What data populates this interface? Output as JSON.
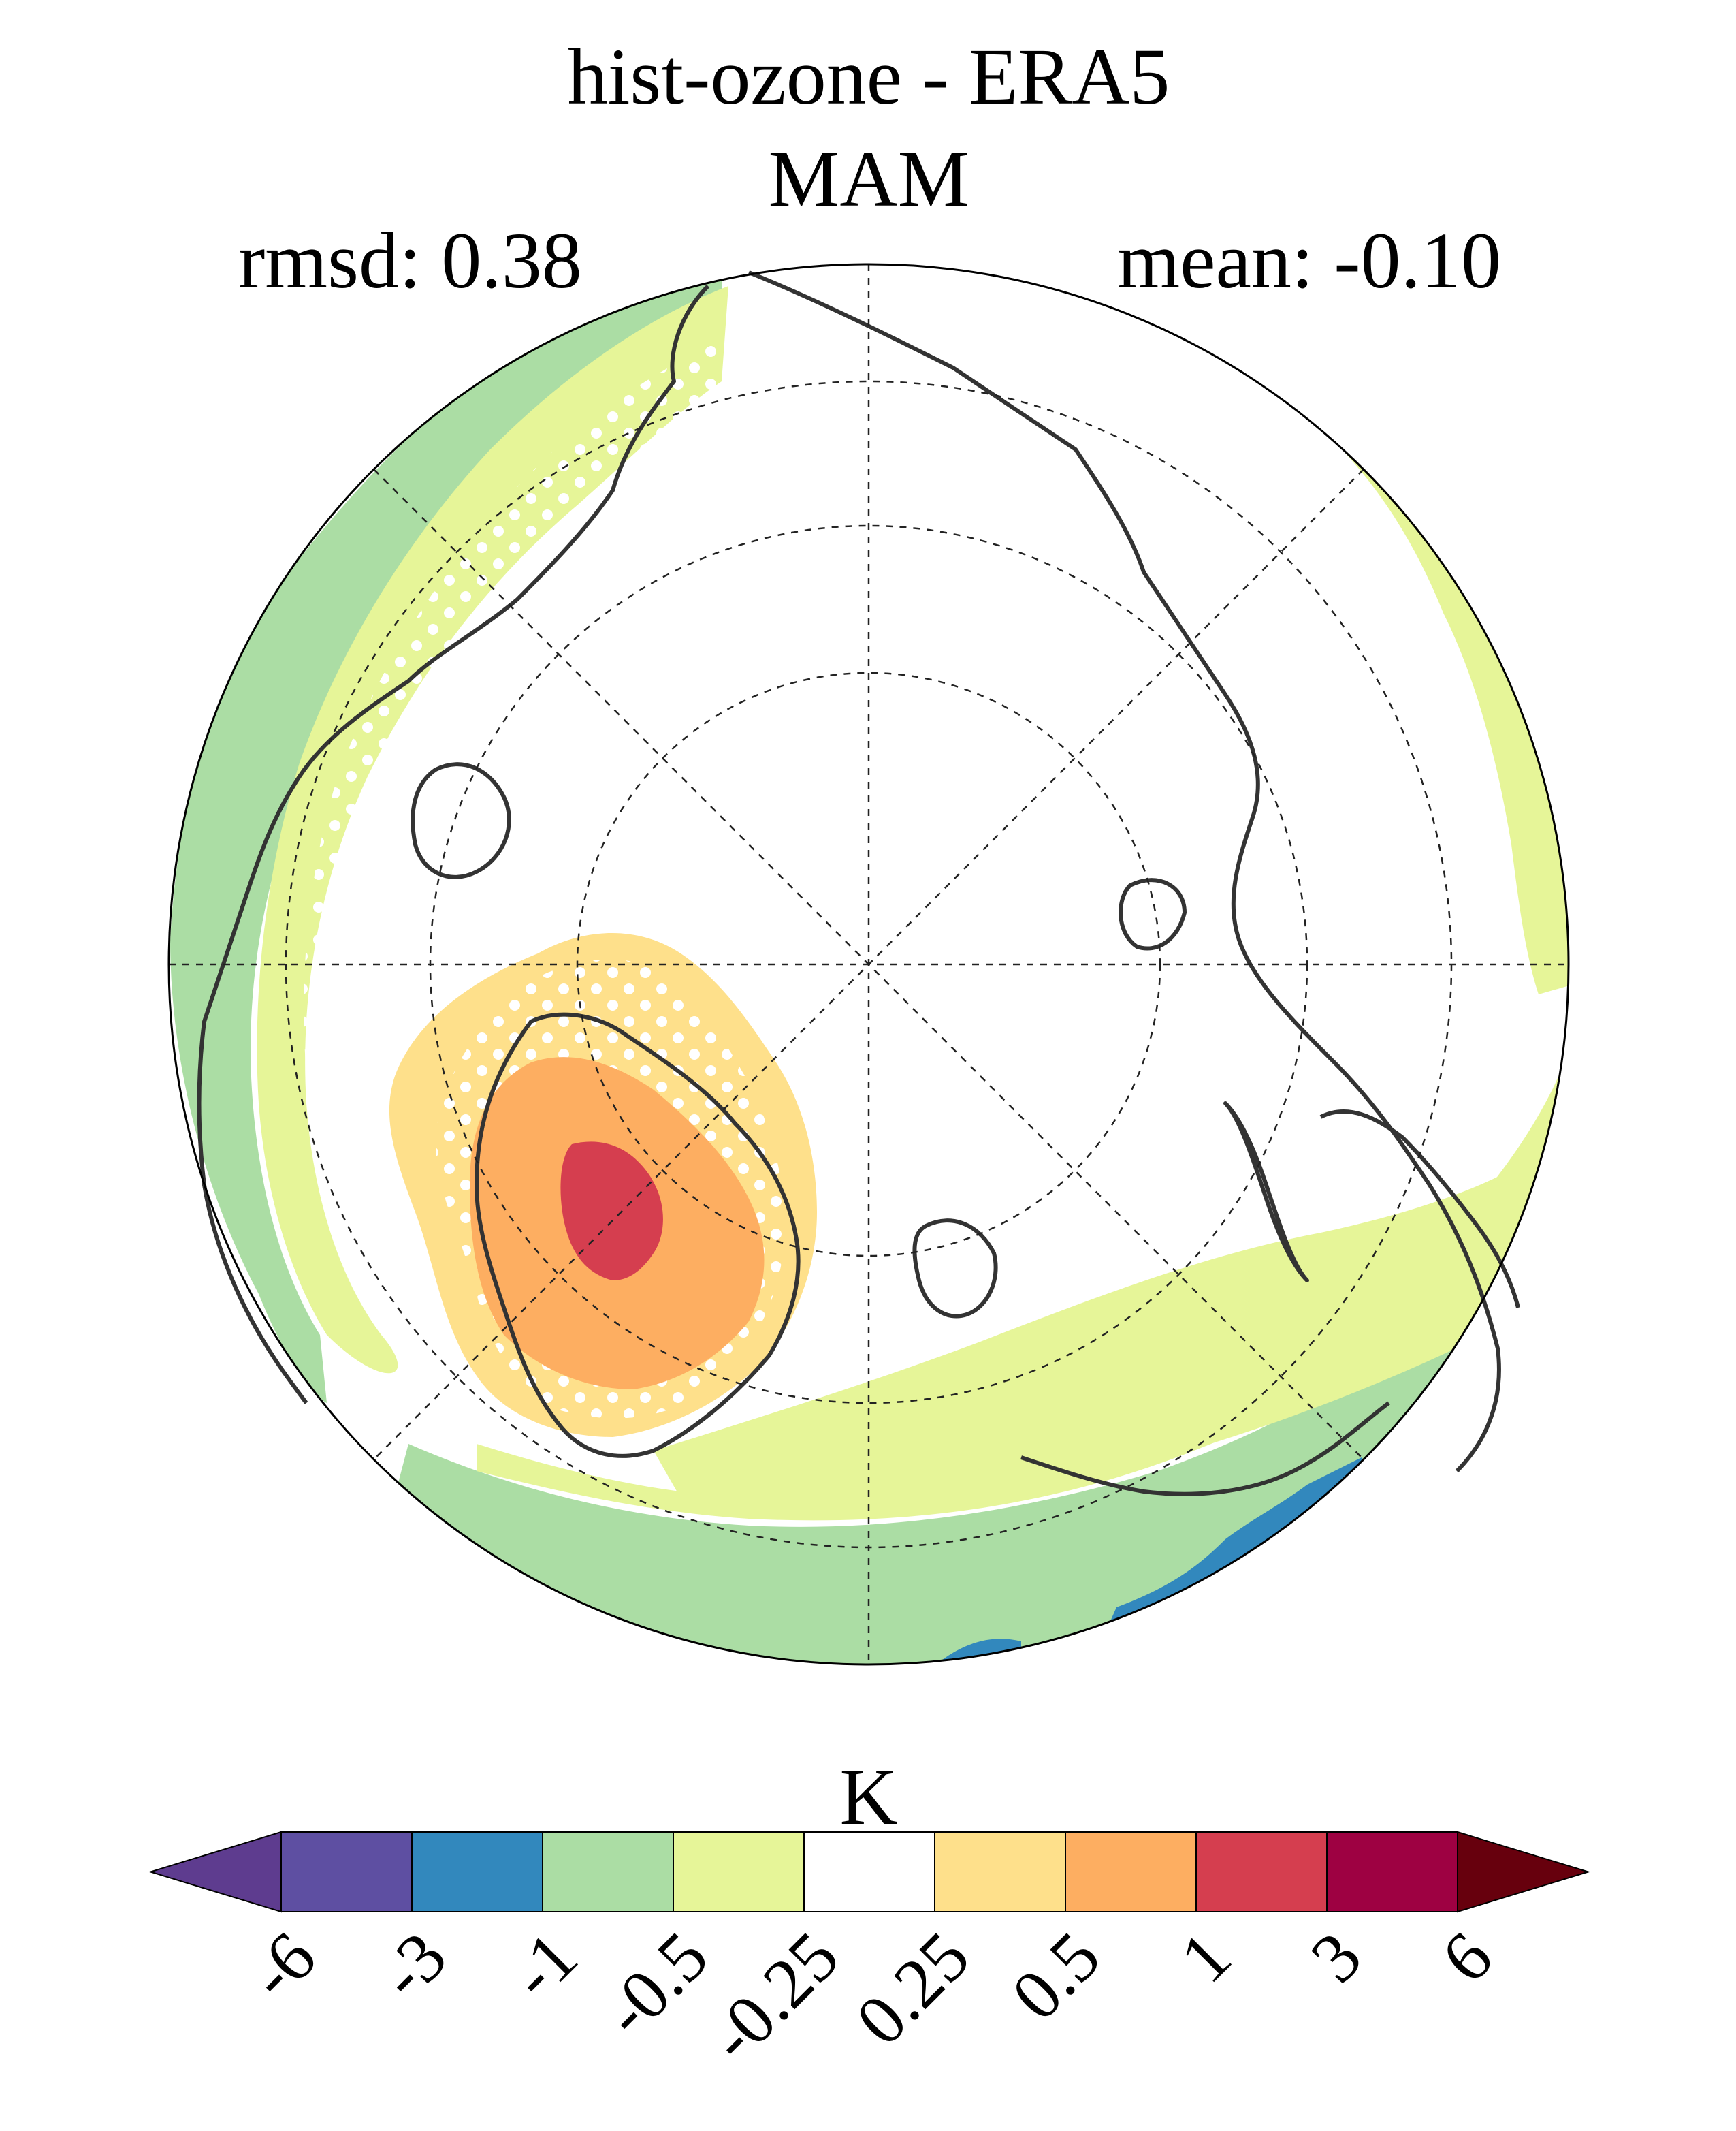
{
  "header": {
    "title": "hist-ozone - ERA5",
    "season": "MAM",
    "rmsd_label": "rmsd: 0.38",
    "mean_label": "mean: -0.10"
  },
  "colorbar": {
    "unit_label": "K",
    "tick_labels": [
      "-6",
      "-3",
      "-1",
      "-0.5",
      "-0.25",
      "0.25",
      "0.5",
      "1",
      "3",
      "6"
    ],
    "bin_colors": [
      "#5e4fa2",
      "#3288bd",
      "#abdda4",
      "#e6f598",
      "#ffffff",
      "#fee08b",
      "#fdae61",
      "#d53e4f",
      "#9e0142"
    ],
    "under_color": "#5e3c8f",
    "over_color": "#67000d"
  },
  "map": {
    "projection": "north-polar-stereographic",
    "coastline_color": "#333333",
    "stipple_color": "#ffffff"
  }
}
